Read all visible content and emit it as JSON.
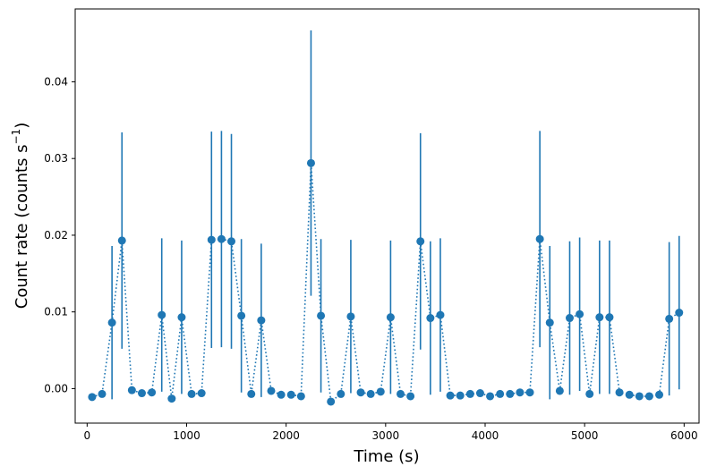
{
  "chart_data": {
    "type": "scatter",
    "title": "",
    "xlabel": "Time (s)",
    "ylabel": {
      "text": "Count rate (counts s",
      "sup": "−1",
      "close": ")"
    },
    "xlim": [
      -120,
      6150
    ],
    "ylim": [
      -0.0045,
      0.0495
    ],
    "xticks": [
      0,
      1000,
      2000,
      3000,
      4000,
      5000,
      6000
    ],
    "xtick_labels": [
      "0",
      "1000",
      "2000",
      "3000",
      "4000",
      "5000",
      "6000"
    ],
    "yticks": [
      0.0,
      0.01,
      0.02,
      0.03,
      0.04
    ],
    "ytick_labels": [
      "0.00",
      "0.01",
      "0.02",
      "0.03",
      "0.04"
    ],
    "grid": false,
    "colors": {
      "series": "#1f77b4"
    },
    "series": [
      {
        "line_style": "dotted",
        "marker": "circle",
        "x": [
          50,
          150,
          250,
          350,
          450,
          550,
          650,
          750,
          850,
          950,
          1050,
          1150,
          1250,
          1350,
          1450,
          1550,
          1650,
          1750,
          1850,
          1950,
          2050,
          2150,
          2250,
          2350,
          2450,
          2550,
          2650,
          2750,
          2850,
          2950,
          3050,
          3150,
          3250,
          3350,
          3450,
          3550,
          3650,
          3750,
          3850,
          3950,
          4050,
          4150,
          4250,
          4350,
          4450,
          4550,
          4650,
          4750,
          4850,
          4950,
          5050,
          5150,
          5250,
          5350,
          5450,
          5550,
          5650,
          5750,
          5850,
          5950
        ],
        "y": [
          -0.0011,
          -0.0007,
          0.0086,
          0.0193,
          -0.0002,
          -0.0006,
          -0.0005,
          0.0096,
          -0.0013,
          0.0093,
          -0.0007,
          -0.0006,
          0.0194,
          0.0195,
          0.0192,
          0.0095,
          -0.0007,
          0.0089,
          -0.0003,
          -0.0008,
          -0.0008,
          -0.001,
          0.0294,
          0.0095,
          -0.0017,
          -0.0007,
          0.0094,
          -0.0005,
          -0.0007,
          -0.0004,
          0.0093,
          -0.0007,
          -0.001,
          0.0192,
          0.0092,
          0.0096,
          -0.0009,
          -0.0009,
          -0.0007,
          -0.0006,
          -0.001,
          -0.0007,
          -0.0007,
          -0.0005,
          -0.0005,
          0.0195,
          0.0086,
          -0.0003,
          0.0092,
          0.0097,
          -0.0007,
          0.0093,
          0.0093,
          -0.0005,
          -0.0008,
          -0.001,
          -0.001,
          -0.0008,
          0.0091,
          0.0099
        ],
        "yerr": [
          0,
          0,
          0.01,
          0.0141,
          0,
          0,
          0,
          0.01,
          0,
          0.01,
          0,
          0,
          0.0141,
          0.0141,
          0.014,
          0.01,
          0,
          0.01,
          0,
          0,
          0,
          0,
          0.0173,
          0.01,
          0,
          0,
          0.01,
          0,
          0,
          0,
          0.01,
          0,
          0,
          0.0141,
          0.01,
          0.01,
          0,
          0,
          0,
          0,
          0,
          0,
          0,
          0,
          0,
          0.0141,
          0.01,
          0,
          0.01,
          0.01,
          0,
          0.01,
          0.01,
          0,
          0,
          0,
          0,
          0,
          0.01,
          0.01
        ]
      }
    ]
  }
}
